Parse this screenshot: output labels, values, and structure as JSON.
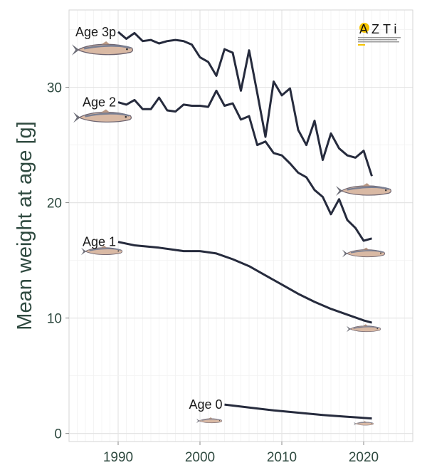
{
  "chart_data": {
    "type": "line",
    "title": "",
    "xlabel": "",
    "ylabel": "Mean weight at age [g]",
    "xlim": [
      1984,
      2026
    ],
    "ylim": [
      -0.7,
      36.7
    ],
    "xticks": [
      1990,
      2000,
      2010,
      2020
    ],
    "yticks": [
      0,
      10,
      20,
      30
    ],
    "grid": true,
    "line_color": "#262b3d",
    "series": [
      {
        "name": "Age 3p",
        "x": [
          1990,
          1991,
          1992,
          1993,
          1994,
          1995,
          1996,
          1997,
          1998,
          1999,
          2000,
          2001,
          2002,
          2003,
          2004,
          2005,
          2006,
          2007,
          2008,
          2009,
          2010,
          2011,
          2012,
          2013,
          2014,
          2015,
          2016,
          2017,
          2018,
          2019,
          2020,
          2021
        ],
        "y": [
          34.8,
          34.2,
          34.7,
          34.0,
          34.1,
          33.8,
          34.0,
          34.1,
          34.0,
          33.7,
          32.6,
          32.2,
          31.0,
          33.3,
          33.0,
          29.7,
          33.2,
          29.5,
          25.7,
          30.5,
          29.3,
          29.9,
          26.3,
          25.0,
          27.1,
          23.7,
          26.0,
          24.7,
          24.1,
          23.9,
          24.5,
          22.3
        ]
      },
      {
        "name": "Age 2",
        "x": [
          1990,
          1991,
          1992,
          1993,
          1994,
          1995,
          1996,
          1997,
          1998,
          1999,
          2000,
          2001,
          2002,
          2003,
          2004,
          2005,
          2006,
          2007,
          2008,
          2009,
          2010,
          2011,
          2012,
          2013,
          2014,
          2015,
          2016,
          2017,
          2018,
          2019,
          2020,
          2021
        ],
        "y": [
          28.7,
          28.5,
          28.9,
          28.1,
          28.1,
          29.1,
          28.0,
          27.9,
          28.5,
          28.4,
          28.4,
          28.3,
          29.7,
          28.4,
          28.6,
          27.2,
          27.5,
          25.0,
          25.3,
          24.3,
          24.1,
          23.4,
          22.6,
          22.2,
          21.1,
          20.5,
          19.0,
          20.3,
          18.5,
          17.8,
          16.7,
          16.9
        ]
      },
      {
        "name": "Age 1",
        "x": [
          1990,
          1992,
          1995,
          1998,
          2000,
          2002,
          2004,
          2006,
          2008,
          2010,
          2012,
          2014,
          2016,
          2018,
          2020,
          2021
        ],
        "y": [
          16.6,
          16.3,
          16.1,
          15.8,
          15.8,
          15.6,
          15.1,
          14.5,
          13.7,
          12.9,
          12.1,
          11.4,
          10.8,
          10.3,
          9.8,
          9.6
        ]
      },
      {
        "name": "Age 0",
        "x": [
          2003,
          2006,
          2009,
          2012,
          2015,
          2018,
          2021
        ],
        "y": [
          2.5,
          2.25,
          2.0,
          1.8,
          1.6,
          1.45,
          1.3
        ]
      }
    ]
  },
  "logo": {
    "text": "AZTi",
    "tagline": "MEMBER OF BASQUE RESEARCH & TECHNOLOGY ALLIANCE",
    "accent": "#f5c400"
  }
}
